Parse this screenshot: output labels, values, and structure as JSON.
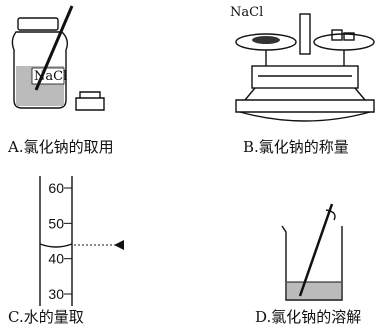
{
  "panels": [
    {
      "caption": "A.氯化钠的取用",
      "label": "NaCl"
    },
    {
      "caption": "B.氯化钠的称量",
      "label": "NaCl"
    },
    {
      "caption": "C.水的量取",
      "scale": [
        60,
        50,
        40,
        30
      ]
    },
    {
      "caption": "D.氯化钠的溶解"
    }
  ]
}
